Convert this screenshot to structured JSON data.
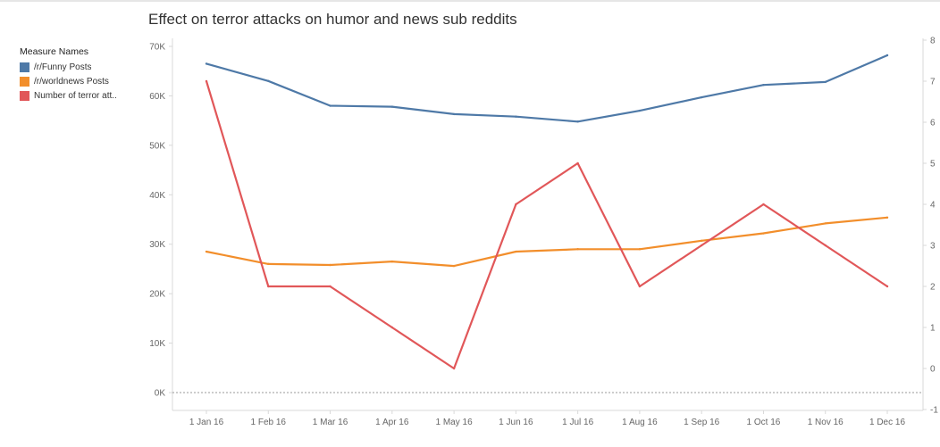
{
  "page": {
    "title": "Effect on terror attacks on humor and news sub reddits"
  },
  "legend": {
    "title": "Measure Names",
    "items": [
      {
        "label": "/r/Funny Posts",
        "color": "#4e79a7"
      },
      {
        "label": "/r/worldnews Posts",
        "color": "#f28e2b"
      },
      {
        "label": "Number of terror att..",
        "color": "#e15759"
      }
    ]
  },
  "chart_data": {
    "type": "line",
    "title": "Effect on terror attacks on humor and news sub reddits",
    "categories": [
      "1 Jan 16",
      "1 Feb 16",
      "1 Mar 16",
      "1 Apr 16",
      "1 May 16",
      "1 Jun 16",
      "1 Jul 16",
      "1 Aug 16",
      "1 Sep 16",
      "1 Oct 16",
      "1 Nov 16",
      "1 Dec 16"
    ],
    "series": [
      {
        "name": "/r/Funny Posts",
        "axis": "left",
        "color": "#4e79a7",
        "values": [
          66500,
          63000,
          58000,
          57800,
          56300,
          55800,
          54800,
          57000,
          59700,
          62200,
          62800,
          68200
        ]
      },
      {
        "name": "/r/worldnews Posts",
        "axis": "left",
        "color": "#f28e2b",
        "values": [
          28500,
          26000,
          25800,
          26500,
          25600,
          28500,
          29000,
          29000,
          30700,
          32200,
          34200,
          35400
        ]
      },
      {
        "name": "Number of terror att..",
        "axis": "right",
        "color": "#e15759",
        "values": [
          7,
          2,
          2,
          1,
          0,
          4,
          5,
          2,
          3,
          4,
          3,
          2
        ]
      }
    ],
    "y_left": {
      "min": 0,
      "max": 70000,
      "ticks": [
        0,
        10000,
        20000,
        30000,
        40000,
        50000,
        60000,
        70000
      ],
      "tick_labels": [
        "0K",
        "10K",
        "20K",
        "30K",
        "40K",
        "50K",
        "60K",
        "70K"
      ]
    },
    "y_right": {
      "min": -1,
      "max": 8,
      "ticks": [
        -1,
        0,
        1,
        2,
        3,
        4,
        5,
        6,
        7,
        8
      ],
      "tick_labels": [
        "-1",
        "0",
        "1",
        "2",
        "3",
        "4",
        "5",
        "6",
        "7",
        "8"
      ]
    },
    "grid": false,
    "zero_line": "dotted",
    "legend_position": "left"
  }
}
